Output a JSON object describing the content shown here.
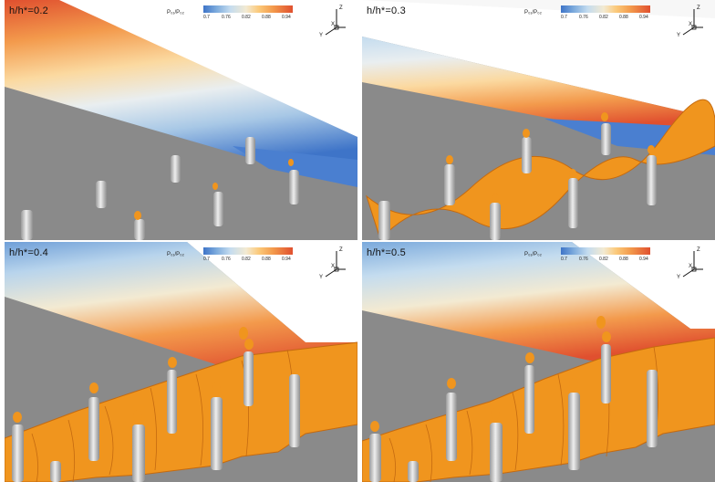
{
  "panels": [
    {
      "label": "h/h*=0.2",
      "colorbar_title": "P₀₁/P₀₂",
      "ticks": [
        "0.7",
        "0.76",
        "0.82",
        "0.88",
        "0.94"
      ]
    },
    {
      "label": "h/h*=0.3",
      "colorbar_title": "P₀₁/P₀₂",
      "ticks": [
        "0.7",
        "0.76",
        "0.82",
        "0.88",
        "0.94"
      ]
    },
    {
      "label": "h/h*=0.4",
      "colorbar_title": "P₀₁/P₀₂",
      "ticks": [
        "0.7",
        "0.76",
        "0.82",
        "0.88",
        "0.94"
      ]
    },
    {
      "label": "h/h*=0.5",
      "colorbar_title": "P₀₁/P₀₂",
      "ticks": [
        "0.7",
        "0.76",
        "0.82",
        "0.88",
        "0.94"
      ]
    }
  ],
  "axes_triad": {
    "z": "Z",
    "x": "X",
    "y": "Y"
  },
  "colors": {
    "low": "#3e74c8",
    "mid": "#f3ead2",
    "high": "#e0502f",
    "isosurface": "#f0951e",
    "wall": "#8a8a8a",
    "pillar": "#c8c8c8"
  }
}
